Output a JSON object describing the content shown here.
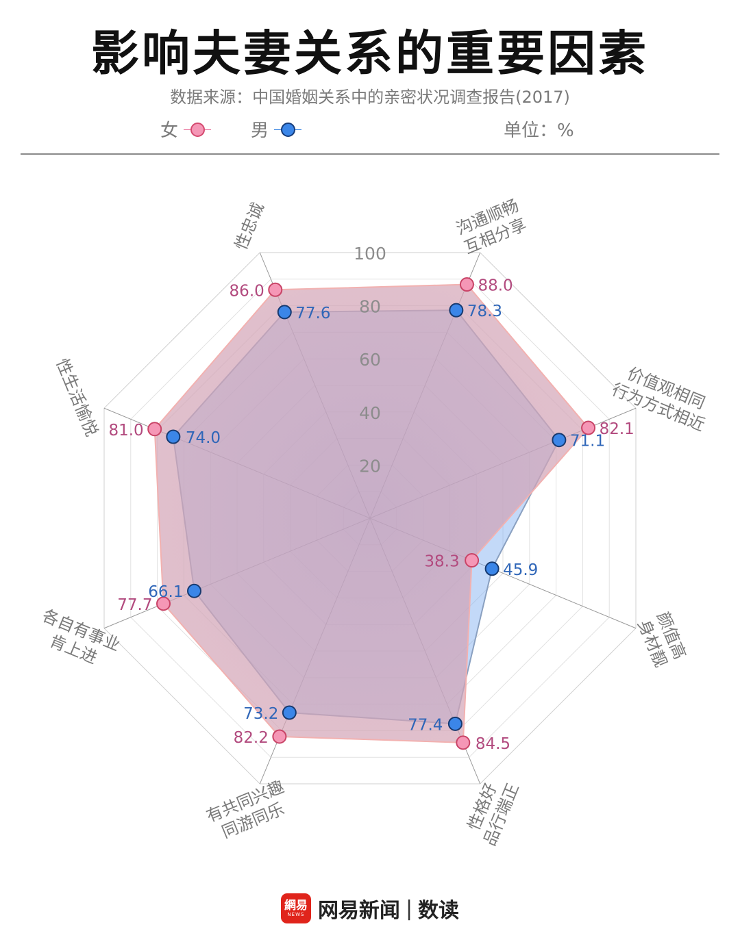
{
  "header": {
    "title": "影响夫妻关系的重要因素",
    "source": "数据来源：中国婚姻关系中的亲密状况调查报告(2017)",
    "unit": "单位：%"
  },
  "legend": [
    {
      "label": "女",
      "color": "#e8709a"
    },
    {
      "label": "男",
      "color": "#2f7fe0"
    }
  ],
  "chart_data": {
    "type": "radar",
    "axes": [
      [
        "沟通顺畅",
        "互相分享"
      ],
      [
        "价值观相同",
        "行为方式相近"
      ],
      [
        "颜值高",
        "身材靓"
      ],
      [
        "性格好",
        "品行端正"
      ],
      [
        "有共同兴趣",
        "同游同乐"
      ],
      [
        "各自有事业",
        "肯上进"
      ],
      [
        "性生活愉悦"
      ],
      [
        "性忠诚"
      ]
    ],
    "ticks": [
      "20",
      "40",
      "60",
      "80",
      "100"
    ],
    "rlim": [
      0,
      100
    ],
    "series": [
      {
        "name": "女",
        "color": "#e8709a",
        "values": [
          88.0,
          82.1,
          38.3,
          84.5,
          82.2,
          77.7,
          81.0,
          86.0
        ],
        "labels": [
          "88.0",
          "82.1",
          "38.3",
          "84.5",
          "82.2",
          "77.7",
          "81.0",
          "86.0"
        ]
      },
      {
        "name": "男",
        "color": "#2f7fe0",
        "values": [
          78.3,
          71.1,
          45.9,
          77.4,
          73.2,
          66.1,
          74.0,
          77.6
        ],
        "labels": [
          "78.3",
          "71.1",
          "45.9",
          "77.4",
          "73.2",
          "66.1",
          "74.0",
          "77.6"
        ]
      }
    ]
  },
  "footer": {
    "logo_text": "網易",
    "logo_sub": "NEWS",
    "brand": "网易新闻",
    "separator": "|",
    "section": "数读"
  }
}
